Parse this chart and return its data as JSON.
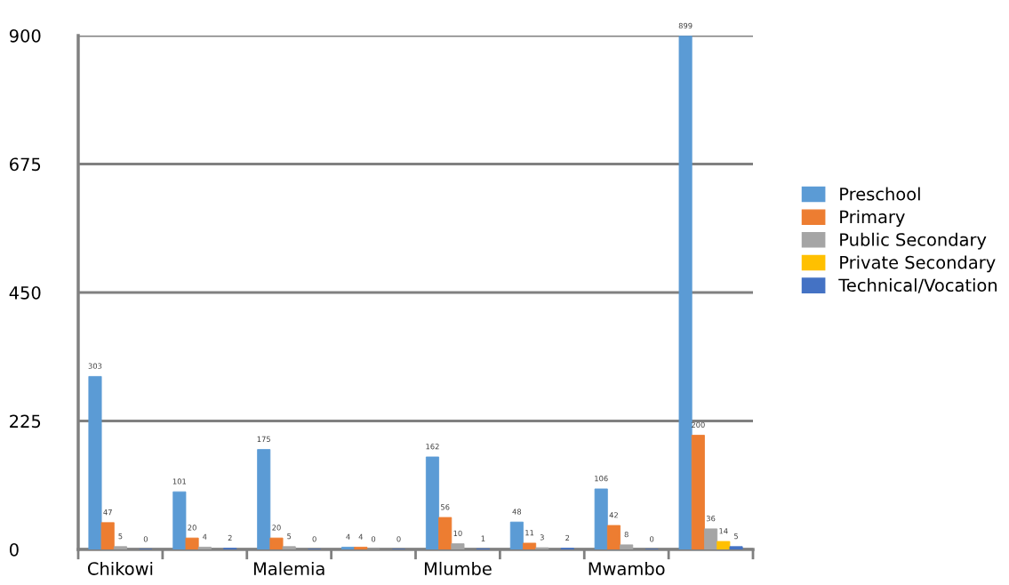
{
  "chart_data": {
    "type": "bar",
    "categories": [
      "Chikowi",
      null,
      "Malemia",
      null,
      "Mlumbe",
      null,
      "Mwambo",
      null
    ],
    "series": [
      {
        "name": "Preschool",
        "color": "#5b9bd5",
        "values": [
          303,
          101,
          175,
          4,
          162,
          48,
          106,
          899
        ]
      },
      {
        "name": "Primary",
        "color": "#ed7d31",
        "values": [
          47,
          20,
          20,
          4,
          56,
          11,
          42,
          200
        ]
      },
      {
        "name": "Public Secondary",
        "color": "#a5a5a5",
        "values": [
          5,
          4,
          5,
          0,
          10,
          3,
          8,
          36
        ]
      },
      {
        "name": "Private Secondary",
        "color": "#ffc000",
        "values": [
          null,
          null,
          null,
          null,
          null,
          null,
          null,
          14
        ]
      },
      {
        "name": "Technical/Vocation",
        "color": "#4472c4",
        "values": [
          0,
          2,
          0,
          0,
          1,
          2,
          0,
          5
        ]
      }
    ],
    "ylim": [
      0,
      900
    ],
    "yticks": [
      0,
      225,
      450,
      675,
      900
    ],
    "grid": "y",
    "legend": "right",
    "data_labels": true
  }
}
